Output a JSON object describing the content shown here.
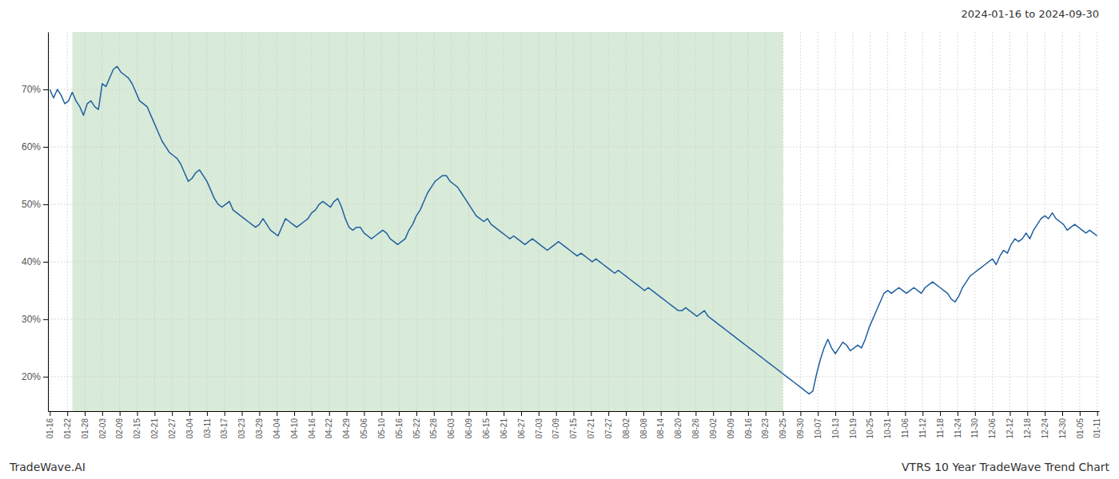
{
  "chart_data": {
    "type": "line",
    "title": "VTRS 10 Year TradeWave Trend Chart",
    "subtitle": "2024-01-16 to 2024-09-30",
    "annotations": [
      "TradeWave.AI"
    ],
    "color": "#2060a0",
    "grid": true,
    "spans": [
      {
        "x": [
          6,
          196
        ],
        "color": "#d8ead8"
      }
    ],
    "xlim": [
      -0.5,
      280.5
    ],
    "xticks": [
      {
        "value": 0,
        "label": "01-16"
      },
      {
        "value": 4.6667,
        "label": "01-22"
      },
      {
        "value": 9.3333,
        "label": "01-28"
      },
      {
        "value": 14,
        "label": "02-03"
      },
      {
        "value": 18.6667,
        "label": "02-09"
      },
      {
        "value": 23.3333,
        "label": "02-15"
      },
      {
        "value": 28,
        "label": "02-21"
      },
      {
        "value": 32.6667,
        "label": "02-27"
      },
      {
        "value": 37.3333,
        "label": "03-04"
      },
      {
        "value": 42,
        "label": "03-11"
      },
      {
        "value": 46.6667,
        "label": "03-17"
      },
      {
        "value": 51.3333,
        "label": "03-23"
      },
      {
        "value": 56,
        "label": "03-29"
      },
      {
        "value": 60.6667,
        "label": "04-04"
      },
      {
        "value": 65.3333,
        "label": "04-10"
      },
      {
        "value": 70,
        "label": "04-16"
      },
      {
        "value": 74.6667,
        "label": "04-22"
      },
      {
        "value": 79.3333,
        "label": "04-29"
      },
      {
        "value": 84,
        "label": "05-06"
      },
      {
        "value": 88.6667,
        "label": "05-10"
      },
      {
        "value": 93.3333,
        "label": "05-16"
      },
      {
        "value": 98,
        "label": "05-22"
      },
      {
        "value": 102.6667,
        "label": "05-28"
      },
      {
        "value": 107.3333,
        "label": "06-03"
      },
      {
        "value": 112,
        "label": "06-09"
      },
      {
        "value": 116.6667,
        "label": "06-15"
      },
      {
        "value": 121.3333,
        "label": "06-21"
      },
      {
        "value": 126,
        "label": "06-27"
      },
      {
        "value": 130.6667,
        "label": "07-03"
      },
      {
        "value": 135.3333,
        "label": "07-09"
      },
      {
        "value": 140,
        "label": "07-15"
      },
      {
        "value": 144.6667,
        "label": "07-21"
      },
      {
        "value": 149.3333,
        "label": "07-27"
      },
      {
        "value": 154,
        "label": "08-02"
      },
      {
        "value": 158.6667,
        "label": "08-08"
      },
      {
        "value": 163.3333,
        "label": "08-14"
      },
      {
        "value": 168,
        "label": "08-20"
      },
      {
        "value": 172.6667,
        "label": "08-26"
      },
      {
        "value": 177.3333,
        "label": "09-02"
      },
      {
        "value": 182,
        "label": "09-09"
      },
      {
        "value": 186.6667,
        "label": "09-16"
      },
      {
        "value": 191.3333,
        "label": "09-23"
      },
      {
        "value": 196,
        "label": "09-25"
      },
      {
        "value": 200.6667,
        "label": "09-30"
      },
      {
        "value": 205.3333,
        "label": "10-07"
      },
      {
        "value": 210,
        "label": "10-13"
      },
      {
        "value": 214.6667,
        "label": "10-19"
      },
      {
        "value": 219.3333,
        "label": "10-25"
      },
      {
        "value": 224,
        "label": "10-31"
      },
      {
        "value": 228.6667,
        "label": "11-06"
      },
      {
        "value": 233.3333,
        "label": "11-12"
      },
      {
        "value": 238,
        "label": "11-18"
      },
      {
        "value": 242.6667,
        "label": "11-24"
      },
      {
        "value": 247.3333,
        "label": "11-30"
      },
      {
        "value": 252,
        "label": "12-06"
      },
      {
        "value": 256.6667,
        "label": "12-12"
      },
      {
        "value": 261.3333,
        "label": "12-18"
      },
      {
        "value": 266,
        "label": "12-24"
      },
      {
        "value": 270.6667,
        "label": "12-30"
      },
      {
        "value": 275.3333,
        "label": "01-05"
      },
      {
        "value": 280,
        "label": "01-11"
      }
    ],
    "ylim": [
      14,
      80
    ],
    "yticks": [
      {
        "value": 20,
        "label": "20%"
      },
      {
        "value": 30,
        "label": "30%"
      },
      {
        "value": 40,
        "label": "40%"
      },
      {
        "value": 50,
        "label": "50%"
      },
      {
        "value": 60,
        "label": "60%"
      },
      {
        "value": 70,
        "label": "70%"
      }
    ],
    "values": [
      70.0,
      68.5,
      70.0,
      69.0,
      67.5,
      68.0,
      69.5,
      68.0,
      67.0,
      65.5,
      67.5,
      68.0,
      67.0,
      66.5,
      71.0,
      70.5,
      72.0,
      73.5,
      74.0,
      73.0,
      72.5,
      72.0,
      71.0,
      69.5,
      68.0,
      67.5,
      67.0,
      65.5,
      64.0,
      62.5,
      61.0,
      60.0,
      59.0,
      58.5,
      58.0,
      57.0,
      55.5,
      54.0,
      54.5,
      55.5,
      56.0,
      55.0,
      54.0,
      52.5,
      51.0,
      50.0,
      49.5,
      50.0,
      50.5,
      49.0,
      48.5,
      48.0,
      47.5,
      47.0,
      46.5,
      46.0,
      46.5,
      47.5,
      46.5,
      45.5,
      45.0,
      44.5,
      46.0,
      47.5,
      47.0,
      46.5,
      46.0,
      46.5,
      47.0,
      47.5,
      48.5,
      49.0,
      50.0,
      50.5,
      50.0,
      49.5,
      50.5,
      51.0,
      49.5,
      47.5,
      46.0,
      45.5,
      46.0,
      46.0,
      45.0,
      44.5,
      44.0,
      44.5,
      45.0,
      45.5,
      45.0,
      44.0,
      43.5,
      43.0,
      43.5,
      44.0,
      45.5,
      46.5,
      48.0,
      49.0,
      50.5,
      52.0,
      53.0,
      54.0,
      54.5,
      55.0,
      55.0,
      54.0,
      53.5,
      53.0,
      52.0,
      51.0,
      50.0,
      49.0,
      48.0,
      47.5,
      47.0,
      47.5,
      46.5,
      46.0,
      45.5,
      45.0,
      44.5,
      44.0,
      44.5,
      44.0,
      43.5,
      43.0,
      43.5,
      44.0,
      43.5,
      43.0,
      42.5,
      42.0,
      42.5,
      43.0,
      43.5,
      43.0,
      42.5,
      42.0,
      41.5,
      41.0,
      41.5,
      41.0,
      40.5,
      40.0,
      40.5,
      40.0,
      39.5,
      39.0,
      38.5,
      38.0,
      38.5,
      38.0,
      37.5,
      37.0,
      36.5,
      36.0,
      35.5,
      35.0,
      35.5,
      35.0,
      34.5,
      34.0,
      33.5,
      33.0,
      32.5,
      32.0,
      31.5,
      31.5,
      32.0,
      31.5,
      31.0,
      30.5,
      31.0,
      31.5,
      30.5,
      30.0,
      29.5,
      29.0,
      28.5,
      28.0,
      27.5,
      27.0,
      26.5,
      26.0,
      25.5,
      25.0,
      24.5,
      24.0,
      23.5,
      23.0,
      22.5,
      22.0,
      21.5,
      21.0,
      20.5,
      20.0,
      19.5,
      19.0,
      18.5,
      18.0,
      17.5,
      17.0,
      17.5,
      20.5,
      23.0,
      25.0,
      26.5,
      25.0,
      24.0,
      25.0,
      26.0,
      25.5,
      24.5,
      25.0,
      25.5,
      25.0,
      26.5,
      28.5,
      30.0,
      31.5,
      33.0,
      34.5,
      35.0,
      34.5,
      35.0,
      35.5,
      35.0,
      34.5,
      35.0,
      35.5,
      35.0,
      34.5,
      35.5,
      36.0,
      36.5,
      36.0,
      35.5,
      35.0,
      34.5,
      33.5,
      33.0,
      34.0,
      35.5,
      36.5,
      37.5,
      38.0,
      38.5,
      39.0,
      39.5,
      40.0,
      40.5,
      39.5,
      41.0,
      42.0,
      41.5,
      43.0,
      44.0,
      43.5,
      44.0,
      45.0,
      44.0,
      45.5,
      46.5,
      47.5,
      48.0,
      47.5,
      48.5,
      47.5,
      47.0,
      46.5,
      45.5,
      46.0,
      46.5,
      46.0,
      45.5,
      45.0,
      45.5,
      45.0,
      44.5
    ]
  }
}
